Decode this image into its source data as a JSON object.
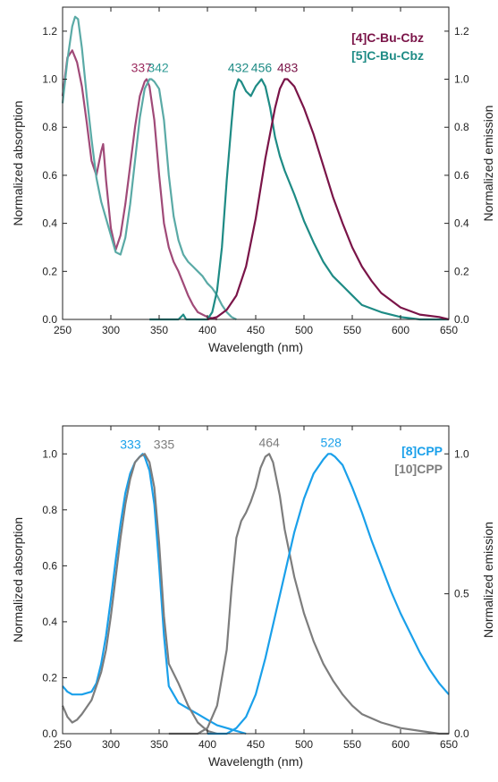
{
  "chart_data": [
    {
      "type": "line",
      "title": "",
      "xlabel": "Wavelength (nm)",
      "ylabel": "Normalized absorption",
      "y2label": "Normalized emission",
      "xlim": [
        250,
        650
      ],
      "ylim": [
        0,
        1.3
      ],
      "y2lim": [
        0,
        1.3
      ],
      "xticks": [
        "250",
        "300",
        "350",
        "400",
        "450",
        "500",
        "550",
        "600",
        "650"
      ],
      "yticks": [
        "0.0",
        "0.2",
        "0.4",
        "0.6",
        "0.8",
        "1.0",
        "1.2"
      ],
      "y2ticks": [
        "0.0",
        "0.2",
        "0.4",
        "0.6",
        "0.8",
        "1.0",
        "1.2"
      ],
      "legend": [
        {
          "label": "[4]C-Bu-Cbz",
          "color": "#7a1448"
        },
        {
          "label": "[5]C-Bu-Cbz",
          "color": "#1e8b85"
        }
      ],
      "legend_position": "top-right",
      "peak_labels": [
        {
          "text": "337",
          "x": 337,
          "y": 1.0,
          "color": "#9b2a5e"
        },
        {
          "text": "342",
          "x": 342,
          "y": 1.0,
          "color": "#2e9a94"
        },
        {
          "text": "432",
          "x": 432,
          "y": 1.0,
          "color": "#1e8b85"
        },
        {
          "text": "456",
          "x": 456,
          "y": 1.0,
          "color": "#1e8b85"
        },
        {
          "text": "483",
          "x": 483,
          "y": 1.0,
          "color": "#7a1448"
        }
      ],
      "series": [
        {
          "name": "[4]C-Bu-Cbz",
          "kind": "absorption",
          "color": "#a04a78",
          "x": [
            250,
            255,
            260,
            265,
            270,
            275,
            280,
            285,
            290,
            292,
            295,
            300,
            305,
            310,
            315,
            320,
            325,
            330,
            335,
            337,
            340,
            345,
            350,
            355,
            360,
            365,
            370,
            375,
            380,
            385,
            390,
            400,
            410
          ],
          "y": [
            0.93,
            1.09,
            1.12,
            1.07,
            0.97,
            0.82,
            0.66,
            0.6,
            0.7,
            0.73,
            0.58,
            0.38,
            0.29,
            0.35,
            0.48,
            0.64,
            0.8,
            0.93,
            0.99,
            1.0,
            0.97,
            0.83,
            0.6,
            0.4,
            0.3,
            0.24,
            0.2,
            0.15,
            0.1,
            0.06,
            0.03,
            0.01,
            0.0
          ]
        },
        {
          "name": "[5]C-Bu-Cbz",
          "kind": "absorption",
          "color": "#5aaaa6",
          "x": [
            250,
            255,
            260,
            263,
            266,
            270,
            275,
            280,
            285,
            290,
            295,
            300,
            305,
            310,
            315,
            320,
            325,
            330,
            335,
            340,
            342,
            345,
            350,
            355,
            360,
            365,
            370,
            375,
            380,
            385,
            390,
            395,
            400,
            405,
            410,
            415,
            420,
            425,
            430
          ],
          "y": [
            0.9,
            1.08,
            1.22,
            1.26,
            1.25,
            1.13,
            0.93,
            0.75,
            0.59,
            0.49,
            0.42,
            0.35,
            0.28,
            0.27,
            0.34,
            0.48,
            0.66,
            0.84,
            0.96,
            1.0,
            1.0,
            0.99,
            0.96,
            0.83,
            0.6,
            0.43,
            0.33,
            0.27,
            0.24,
            0.22,
            0.2,
            0.18,
            0.15,
            0.13,
            0.1,
            0.06,
            0.03,
            0.01,
            0.0
          ]
        },
        {
          "name": "[5]C-Bu-Cbz",
          "kind": "emission",
          "color": "#1e8b85",
          "x": [
            340,
            370,
            375,
            378,
            385,
            400,
            405,
            410,
            415,
            420,
            425,
            428,
            432,
            435,
            440,
            445,
            450,
            456,
            460,
            465,
            470,
            475,
            480,
            490,
            500,
            510,
            520,
            530,
            540,
            550,
            560,
            580,
            600,
            620,
            650
          ],
          "y": [
            0.0,
            0.0,
            0.02,
            0.0,
            0.0,
            0.0,
            0.03,
            0.12,
            0.3,
            0.58,
            0.82,
            0.95,
            1.0,
            0.99,
            0.95,
            0.93,
            0.97,
            1.0,
            0.97,
            0.88,
            0.76,
            0.68,
            0.62,
            0.52,
            0.41,
            0.32,
            0.24,
            0.18,
            0.14,
            0.1,
            0.06,
            0.03,
            0.01,
            0.0,
            0.0
          ]
        },
        {
          "name": "[4]C-Bu-Cbz",
          "kind": "emission",
          "color": "#7a1448",
          "x": [
            400,
            410,
            420,
            430,
            440,
            450,
            460,
            470,
            475,
            480,
            483,
            490,
            500,
            510,
            520,
            530,
            540,
            550,
            560,
            570,
            580,
            600,
            620,
            640,
            650
          ],
          "y": [
            0.0,
            0.01,
            0.04,
            0.1,
            0.22,
            0.42,
            0.67,
            0.88,
            0.96,
            1.0,
            1.0,
            0.97,
            0.88,
            0.77,
            0.64,
            0.51,
            0.4,
            0.3,
            0.22,
            0.16,
            0.11,
            0.05,
            0.02,
            0.01,
            0.0
          ]
        }
      ]
    },
    {
      "type": "line",
      "title": "",
      "xlabel": "Wavelength (nm)",
      "ylabel": "Normalized absorption",
      "y2label": "Normalized emission",
      "xlim": [
        250,
        650
      ],
      "ylim": [
        0,
        1.1
      ],
      "y2lim": [
        0,
        1.1
      ],
      "xticks": [
        "250",
        "300",
        "350",
        "400",
        "450",
        "500",
        "550",
        "600",
        "650"
      ],
      "yticks": [
        "0.0",
        "0.2",
        "0.4",
        "0.6",
        "0.8",
        "1.0"
      ],
      "y2ticks": [
        "0.0",
        "0.5",
        "1.0"
      ],
      "legend": [
        {
          "label": "[8]CPP",
          "color": "#1aa0ea"
        },
        {
          "label": "[10]CPP",
          "color": "#7d7d7d"
        }
      ],
      "legend_position": "top-right",
      "peak_labels": [
        {
          "text": "333",
          "x": 333,
          "y": 1.0,
          "color": "#1aa0ea"
        },
        {
          "text": "335",
          "x": 335,
          "y": 1.0,
          "color": "#7d7d7d"
        },
        {
          "text": "464",
          "x": 464,
          "y": 1.0,
          "color": "#7d7d7d"
        },
        {
          "text": "528",
          "x": 528,
          "y": 1.0,
          "color": "#1aa0ea"
        }
      ],
      "series": [
        {
          "name": "[8]CPP",
          "kind": "absorption",
          "color": "#1aa0ea",
          "x": [
            250,
            255,
            260,
            270,
            280,
            285,
            290,
            295,
            300,
            305,
            310,
            315,
            320,
            325,
            330,
            333,
            335,
            340,
            345,
            350,
            355,
            360,
            370,
            380,
            390,
            400,
            410,
            420,
            430,
            440
          ],
          "y": [
            0.17,
            0.15,
            0.14,
            0.14,
            0.15,
            0.18,
            0.25,
            0.35,
            0.48,
            0.62,
            0.75,
            0.86,
            0.93,
            0.97,
            0.99,
            1.0,
            0.99,
            0.94,
            0.82,
            0.6,
            0.35,
            0.17,
            0.11,
            0.09,
            0.07,
            0.05,
            0.03,
            0.02,
            0.01,
            0.0
          ]
        },
        {
          "name": "[10]CPP",
          "kind": "absorption",
          "color": "#7d7d7d",
          "x": [
            250,
            255,
            260,
            265,
            270,
            280,
            290,
            295,
            300,
            305,
            310,
            315,
            320,
            325,
            330,
            335,
            340,
            345,
            350,
            355,
            360,
            370,
            380,
            390,
            400,
            410
          ],
          "y": [
            0.1,
            0.06,
            0.04,
            0.05,
            0.07,
            0.12,
            0.22,
            0.3,
            0.42,
            0.56,
            0.7,
            0.82,
            0.91,
            0.97,
            0.99,
            1.0,
            0.97,
            0.88,
            0.68,
            0.42,
            0.25,
            0.18,
            0.1,
            0.04,
            0.01,
            0.0
          ]
        },
        {
          "name": "[10]CPP",
          "kind": "emission",
          "color": "#7d7d7d",
          "x": [
            360,
            390,
            400,
            410,
            420,
            425,
            430,
            435,
            440,
            445,
            450,
            455,
            460,
            464,
            468,
            475,
            480,
            490,
            500,
            510,
            520,
            530,
            540,
            550,
            560,
            580,
            600,
            620,
            640,
            650
          ],
          "y": [
            0.0,
            0.0,
            0.02,
            0.1,
            0.3,
            0.52,
            0.7,
            0.76,
            0.79,
            0.83,
            0.88,
            0.95,
            0.99,
            1.0,
            0.97,
            0.85,
            0.73,
            0.56,
            0.43,
            0.33,
            0.25,
            0.19,
            0.14,
            0.1,
            0.07,
            0.04,
            0.02,
            0.01,
            0.0,
            0.0
          ]
        },
        {
          "name": "[8]CPP",
          "kind": "emission",
          "color": "#1aa0ea",
          "x": [
            400,
            420,
            430,
            440,
            450,
            460,
            470,
            480,
            490,
            500,
            510,
            520,
            525,
            528,
            532,
            540,
            550,
            560,
            570,
            580,
            590,
            600,
            610,
            620,
            630,
            640,
            650
          ],
          "y": [
            0.0,
            0.0,
            0.02,
            0.06,
            0.14,
            0.27,
            0.42,
            0.57,
            0.72,
            0.84,
            0.93,
            0.98,
            1.0,
            1.0,
            0.99,
            0.96,
            0.88,
            0.79,
            0.69,
            0.6,
            0.51,
            0.43,
            0.36,
            0.29,
            0.23,
            0.18,
            0.14
          ]
        }
      ]
    }
  ]
}
